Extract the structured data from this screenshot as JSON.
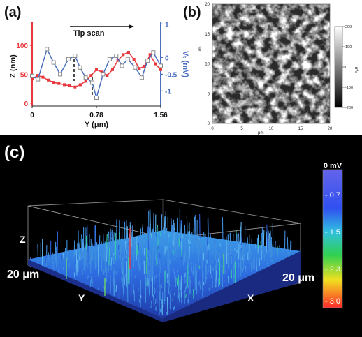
{
  "panels": {
    "a": {
      "label": "(a)",
      "annotation": "Tip scan",
      "chart_index": 0
    },
    "b": {
      "label": "(b)",
      "chart_index": 1
    },
    "c": {
      "label": "(c)",
      "chart_index": 2
    }
  },
  "chart_data": [
    {
      "type": "line",
      "xlabel": "Y (μm)",
      "ylabel_left": "Z (nm)",
      "ylabel_right": "Vₜ (mV)",
      "x_ticks": [
        "0",
        "0.78",
        "1.56"
      ],
      "y_left_ticks": [
        "0",
        "50",
        "100"
      ],
      "y_right_ticks": [
        "1",
        "0",
        "-0.5",
        "-1"
      ],
      "xlim": [
        0,
        1.56
      ],
      "ylim_left": [
        -5,
        140
      ],
      "ylim_right": [
        -1.45,
        1.05
      ],
      "colors": {
        "Z": "#e8383d",
        "V": "#4a6fbf"
      },
      "series": [
        {
          "axis": "left",
          "color": "#e8383d",
          "x": [
            0,
            0.065,
            0.13,
            0.195,
            0.26,
            0.325,
            0.39,
            0.455,
            0.52,
            0.585,
            0.65,
            0.715,
            0.78,
            0.845,
            0.91,
            0.975,
            1.04,
            1.105,
            1.17,
            1.235,
            1.3,
            1.365,
            1.43,
            1.495,
            1.56
          ],
          "values": [
            42,
            48,
            45,
            40,
            36,
            34,
            32,
            30,
            28,
            32,
            38,
            48,
            58,
            54,
            48,
            58,
            74,
            84,
            88,
            76,
            60,
            64,
            84,
            68,
            58
          ]
        },
        {
          "axis": "right",
          "color": "#4a6fbf",
          "x": [
            0,
            0.07,
            0.18,
            0.26,
            0.34,
            0.44,
            0.52,
            0.58,
            0.65,
            0.73,
            0.78,
            0.86,
            0.94,
            1.02,
            1.09,
            1.16,
            1.25,
            1.33,
            1.4,
            1.47,
            1.56
          ],
          "values": [
            -0.55,
            -0.65,
            0.25,
            -0.15,
            -0.5,
            -0.05,
            0.05,
            -0.3,
            -0.6,
            -0.75,
            -1.2,
            -0.5,
            -0.05,
            0.05,
            -0.25,
            -0.05,
            -0.3,
            -0.6,
            -0.1,
            0.15,
            -0.25
          ]
        }
      ]
    },
    {
      "type": "heatmap",
      "xlabel": "μm",
      "ylabel": "μm",
      "x_ticks": [
        "0",
        "5",
        "10",
        "15",
        "20"
      ],
      "y_ticks": [
        "0",
        "5",
        "10",
        "15",
        "20"
      ],
      "colorbar_ticks": [
        "200",
        "100",
        "0",
        "-100",
        "-200"
      ],
      "colorbar_unit": "mV",
      "xlim": [
        0,
        20
      ],
      "ylim": [
        0,
        20
      ],
      "clim": [
        -200,
        200
      ],
      "colormap": [
        "#000000",
        "#ffffff"
      ]
    },
    {
      "type": "surface",
      "axis_labels": {
        "z": "Z",
        "y": "Y",
        "x": "X"
      },
      "size_labels": {
        "y": "20 μm",
        "x": "20 μm"
      },
      "colorbar_ticks": [
        "0 mV",
        "- 0.7",
        "- 1.5",
        "- 2.3",
        "- 3.0"
      ],
      "clim": [
        -3.0,
        0
      ],
      "colormap": [
        "#ff2a2a",
        "#f0e020",
        "#30d050",
        "#30c0e0",
        "#3050f0",
        "#6060e8"
      ]
    }
  ]
}
